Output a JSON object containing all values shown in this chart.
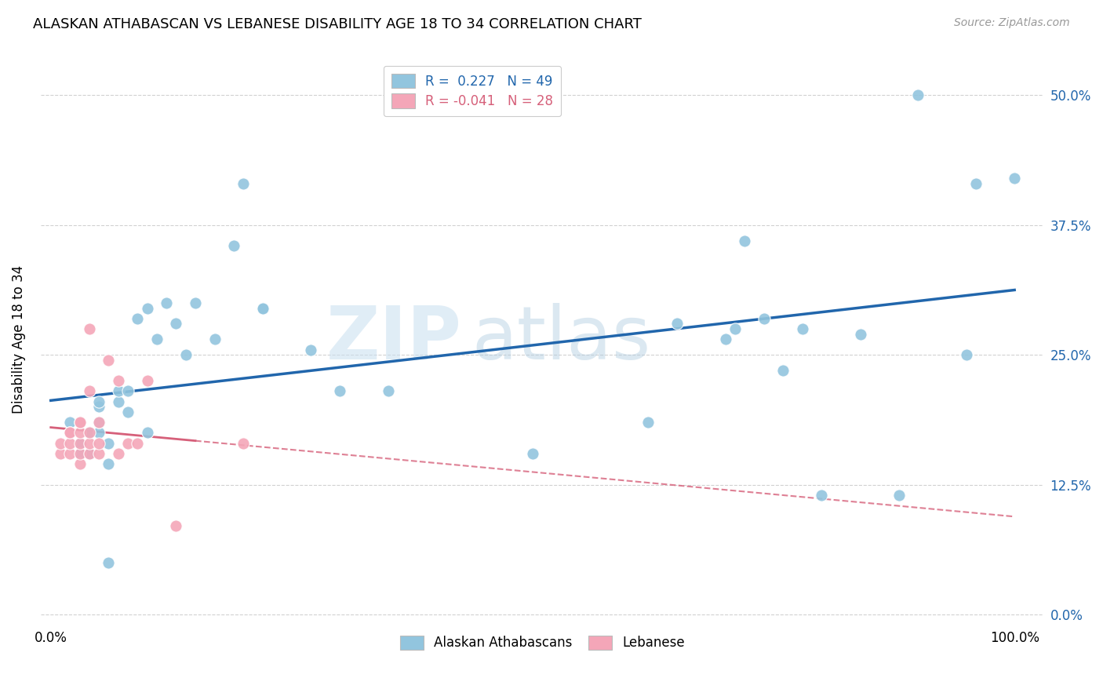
{
  "title": "ALASKAN ATHABASCAN VS LEBANESE DISABILITY AGE 18 TO 34 CORRELATION CHART",
  "source": "Source: ZipAtlas.com",
  "ylabel": "Disability Age 18 to 34",
  "legend_label_blue": "Alaskan Athabascans",
  "legend_label_pink": "Lebanese",
  "R_blue": 0.227,
  "N_blue": 49,
  "R_pink": -0.041,
  "N_pink": 28,
  "color_blue": "#92c5de",
  "color_pink": "#f4a6b8",
  "color_blue_line": "#2166ac",
  "color_pink_line": "#d6607a",
  "watermark_zip": "ZIP",
  "watermark_atlas": "atlas",
  "blue_x": [
    0.02,
    0.03,
    0.03,
    0.04,
    0.04,
    0.04,
    0.05,
    0.05,
    0.05,
    0.05,
    0.06,
    0.06,
    0.06,
    0.07,
    0.07,
    0.08,
    0.08,
    0.09,
    0.1,
    0.1,
    0.11,
    0.12,
    0.13,
    0.14,
    0.15,
    0.17,
    0.19,
    0.2,
    0.22,
    0.22,
    0.27,
    0.3,
    0.35,
    0.5,
    0.62,
    0.65,
    0.7,
    0.71,
    0.72,
    0.74,
    0.76,
    0.78,
    0.8,
    0.84,
    0.88,
    0.9,
    0.95,
    0.96,
    1.0
  ],
  "blue_y": [
    0.185,
    0.155,
    0.165,
    0.175,
    0.175,
    0.155,
    0.175,
    0.185,
    0.2,
    0.205,
    0.05,
    0.145,
    0.165,
    0.205,
    0.215,
    0.195,
    0.215,
    0.285,
    0.175,
    0.295,
    0.265,
    0.3,
    0.28,
    0.25,
    0.3,
    0.265,
    0.355,
    0.415,
    0.295,
    0.295,
    0.255,
    0.215,
    0.215,
    0.155,
    0.185,
    0.28,
    0.265,
    0.275,
    0.36,
    0.285,
    0.235,
    0.275,
    0.115,
    0.27,
    0.115,
    0.5,
    0.25,
    0.415,
    0.42
  ],
  "pink_x": [
    0.01,
    0.01,
    0.02,
    0.02,
    0.02,
    0.02,
    0.03,
    0.03,
    0.03,
    0.03,
    0.03,
    0.03,
    0.04,
    0.04,
    0.04,
    0.04,
    0.04,
    0.05,
    0.05,
    0.05,
    0.06,
    0.07,
    0.07,
    0.08,
    0.09,
    0.1,
    0.13,
    0.2
  ],
  "pink_y": [
    0.155,
    0.165,
    0.155,
    0.165,
    0.175,
    0.175,
    0.145,
    0.155,
    0.165,
    0.175,
    0.185,
    0.185,
    0.155,
    0.165,
    0.175,
    0.215,
    0.275,
    0.155,
    0.165,
    0.185,
    0.245,
    0.155,
    0.225,
    0.165,
    0.165,
    0.225,
    0.085,
    0.165
  ],
  "background_color": "#ffffff",
  "grid_color": "#cccccc",
  "xlim": [
    -0.01,
    1.03
  ],
  "ylim": [
    -0.01,
    0.54
  ],
  "ytick_vals": [
    0.0,
    0.125,
    0.25,
    0.375,
    0.5
  ],
  "ytick_labels": [
    "0.0%",
    "12.5%",
    "25.0%",
    "37.5%",
    "50.0%"
  ],
  "xtick_vals": [
    0.0,
    1.0
  ],
  "xtick_labels": [
    "0.0%",
    "100.0%"
  ]
}
